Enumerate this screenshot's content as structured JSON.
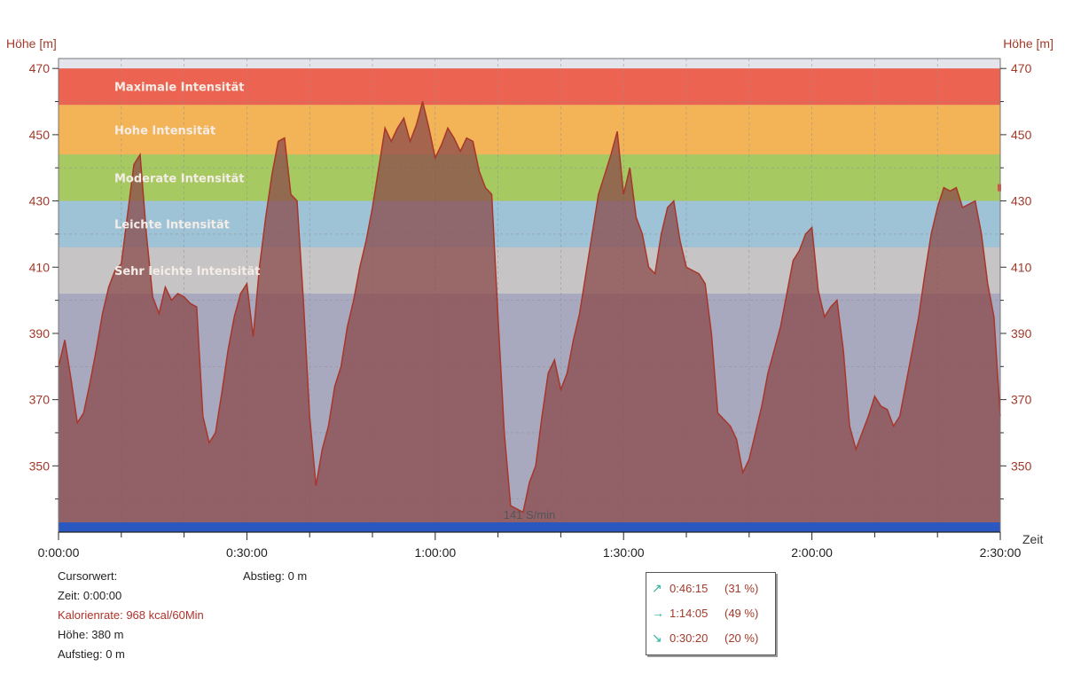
{
  "chart_data": {
    "type": "area",
    "ylabel_left": "Höhe [m]",
    "ylabel_right": "Höhe [m]",
    "xlabel": "Zeit",
    "ylim": [
      330,
      473
    ],
    "xlim_seconds": [
      0,
      9000
    ],
    "y_ticks": [
      350,
      370,
      390,
      410,
      430,
      450,
      470
    ],
    "x_ticks": [
      "0:00:00",
      "0:30:00",
      "1:00:00",
      "1:30:00",
      "2:00:00",
      "2:30:00"
    ],
    "zones": [
      {
        "label": "Maximale Intensität",
        "from": 459,
        "to": 470,
        "color": "#ec6451"
      },
      {
        "label": "Hohe Intensität",
        "from": 444,
        "to": 459,
        "color": "#f2b457"
      },
      {
        "label": "Moderate Intensität",
        "from": 430,
        "to": 444,
        "color": "#a7c961"
      },
      {
        "label": "Leichte Intensität",
        "from": 416,
        "to": 430,
        "color": "#9ec3d7"
      },
      {
        "label": "Sehr leichte Intensität",
        "from": 402,
        "to": 416,
        "color": "#c6c4c4"
      }
    ],
    "below_zone_color": "#a8a8bf",
    "top_band_color": "#e4e4ec",
    "bottom_bar_color": "#2a57c0",
    "area_color": "#8a4a4a",
    "line_color": "#a8362a",
    "annotation": "141 S/min",
    "series": [
      {
        "x_minutes": [
          0,
          1,
          2,
          3,
          4,
          5,
          6,
          7,
          8,
          9,
          10,
          11,
          12,
          13,
          14,
          15,
          16,
          17,
          18,
          19,
          20,
          21,
          22,
          23,
          24,
          25,
          26,
          27,
          28,
          29,
          30,
          31,
          32,
          33,
          34,
          35,
          36,
          37,
          38,
          39,
          40,
          41,
          42,
          43,
          44,
          45,
          46,
          47,
          48,
          49,
          50,
          51,
          52,
          53,
          54,
          55,
          56,
          57,
          58,
          59,
          60,
          61,
          62,
          63,
          64,
          65,
          66,
          67,
          68,
          69,
          70,
          71,
          72,
          73,
          74,
          75,
          76,
          77,
          78,
          79,
          80,
          81,
          82,
          83,
          84,
          85,
          86,
          87,
          88,
          89,
          90,
          91,
          92,
          93,
          94,
          95,
          96,
          97,
          98,
          99,
          100,
          101,
          102,
          103,
          104,
          105,
          106,
          107,
          108,
          109,
          110,
          111,
          112,
          113,
          114,
          115,
          116,
          117,
          118,
          119,
          120,
          121,
          122,
          123,
          124,
          125,
          126,
          127,
          128,
          129,
          130,
          131,
          132,
          133,
          134,
          135,
          136,
          137,
          138,
          139,
          140,
          141,
          142,
          143,
          144,
          145,
          146,
          147,
          148,
          149,
          150
        ],
        "values": [
          380,
          388,
          376,
          363,
          366,
          375,
          385,
          396,
          404,
          409,
          411,
          426,
          441,
          444,
          420,
          401,
          396,
          404,
          400,
          402,
          401,
          399,
          398,
          365,
          357,
          360,
          372,
          385,
          395,
          402,
          405,
          389,
          410,
          425,
          438,
          448,
          449,
          432,
          430,
          400,
          365,
          344,
          355,
          362,
          374,
          380,
          392,
          400,
          410,
          418,
          428,
          440,
          452,
          448,
          452,
          455,
          448,
          453,
          460,
          452,
          443,
          447,
          452,
          449,
          445,
          449,
          448,
          439,
          434,
          432,
          395,
          360,
          338,
          337,
          336,
          345,
          350,
          365,
          378,
          382,
          373,
          378,
          388,
          396,
          408,
          420,
          432,
          438,
          444,
          451,
          432,
          440,
          425,
          420,
          410,
          408,
          420,
          428,
          430,
          418,
          410,
          409,
          408,
          405,
          390,
          366,
          364,
          362,
          358,
          348,
          352,
          360,
          368,
          378,
          385,
          392,
          402,
          412,
          415,
          420,
          422,
          403,
          395,
          398,
          400,
          385,
          362,
          355,
          360,
          365,
          371,
          368,
          367,
          362,
          365,
          375,
          385,
          395,
          408,
          420,
          428,
          434,
          433,
          434,
          428,
          429,
          430,
          420,
          405,
          395,
          365
        ]
      }
    ]
  },
  "cursor_info": {
    "title": "Cursorwert:",
    "zeit": "Zeit: 0:00:00",
    "kalorienrate": "Kalorienrate: 968 kcal/60Min",
    "hoehe": "Höhe:  380 m",
    "aufstieg": "Aufstieg: 0 m",
    "abstieg": "Abstieg: 0 m"
  },
  "summary": [
    {
      "icon": "arrow-up-right-icon",
      "glyph": "↗",
      "time": "0:46:15",
      "percent": "(31 %)"
    },
    {
      "icon": "arrow-right-icon",
      "glyph": "→",
      "time": "1:14:05",
      "percent": "(49 %)"
    },
    {
      "icon": "arrow-down-right-icon",
      "glyph": "↘",
      "time": "0:30:20",
      "percent": "(20 %)"
    }
  ]
}
